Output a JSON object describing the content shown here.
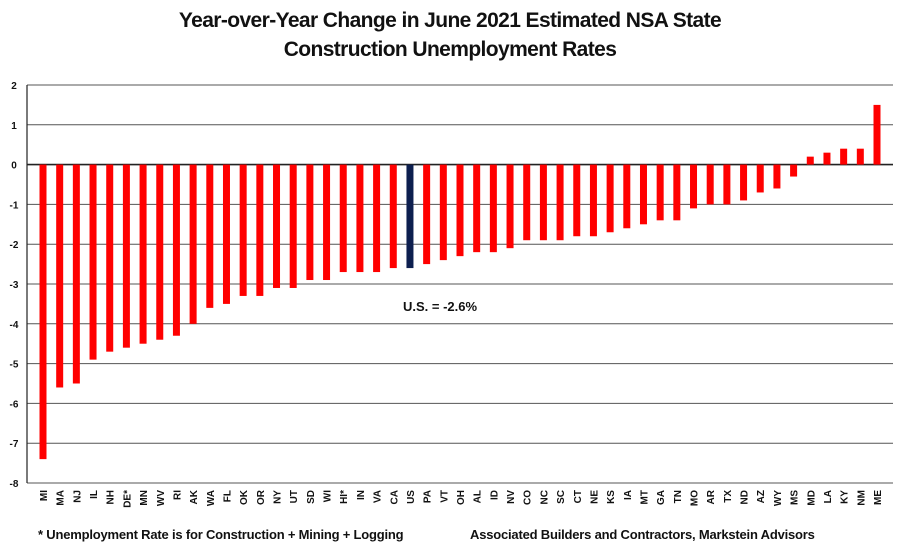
{
  "chart_data": {
    "type": "bar",
    "title": [
      "Year-over-Year Change in June 2021 Estimated NSA State",
      "Construction Unemployment Rates"
    ],
    "xlabel": "",
    "ylabel": "",
    "ylim": [
      -8,
      2
    ],
    "yticks": [
      2,
      1,
      0,
      -1,
      -2,
      -3,
      -4,
      -5,
      -6,
      -7,
      -8
    ],
    "grid": true,
    "categories": [
      "MI",
      "MA",
      "NJ",
      "IL",
      "NH",
      "DE*",
      "MN",
      "WV",
      "RI",
      "AK",
      "WA",
      "FL",
      "OK",
      "OR",
      "NY",
      "UT",
      "SD",
      "WI",
      "HI*",
      "IN",
      "VA",
      "CA",
      "US",
      "PA",
      "VT",
      "OH",
      "AL",
      "ID",
      "NV",
      "CO",
      "NC",
      "SC",
      "CT",
      "NE",
      "KS",
      "IA",
      "MT",
      "GA",
      "TN",
      "MO",
      "AR",
      "TX",
      "ND",
      "AZ",
      "WY",
      "MS",
      "MD",
      "LA",
      "KY",
      "NM",
      "ME"
    ],
    "values": [
      -7.4,
      -5.6,
      -5.5,
      -4.9,
      -4.7,
      -4.6,
      -4.5,
      -4.4,
      -4.3,
      -4.0,
      -3.6,
      -3.5,
      -3.3,
      -3.3,
      -3.1,
      -3.1,
      -2.9,
      -2.9,
      -2.7,
      -2.7,
      -2.7,
      -2.6,
      -2.6,
      -2.5,
      -2.4,
      -2.3,
      -2.2,
      -2.2,
      -2.1,
      -1.9,
      -1.9,
      -1.9,
      -1.8,
      -1.8,
      -1.7,
      -1.6,
      -1.5,
      -1.4,
      -1.4,
      -1.1,
      -1.0,
      -1.0,
      -0.9,
      -0.7,
      -0.6,
      -0.3,
      0.2,
      0.3,
      0.4,
      0.4,
      1.5
    ],
    "colors": {
      "state": "#ff0000",
      "us": "#0d1f4f"
    },
    "highlight": "US",
    "annotation": "U.S. = -2.6%"
  },
  "footnote": "* Unemployment Rate is for Construction + Mining + Logging",
  "source": "Associated Builders and Contractors, Markstein Advisors"
}
